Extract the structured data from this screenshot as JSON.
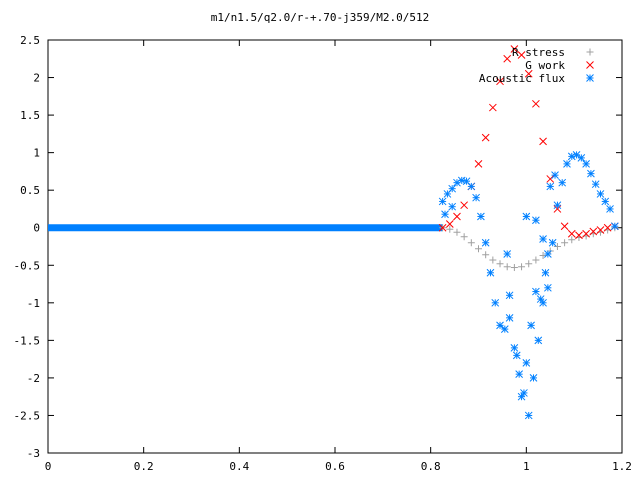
{
  "chart_data": {
    "type": "scatter",
    "title": "m1/n1.5/q2.0/r-+.70-j359/M2.0/512",
    "xlabel": "",
    "ylabel": "",
    "xlim": [
      0,
      1.2
    ],
    "ylim": [
      -3,
      2.5
    ],
    "xticks": [
      "0",
      "0.2",
      "0.4",
      "0.6",
      "0.8",
      "1",
      "1.2"
    ],
    "yticks": [
      "2.5",
      "2",
      "1.5",
      "1",
      "0.5",
      "0",
      "-0.5",
      "-1",
      "-1.5",
      "-2",
      "-2.5",
      "-3"
    ],
    "grid": false,
    "legend_position": "top-right",
    "series": [
      {
        "name": "R stress",
        "marker": "plus",
        "color": "#a0a0a0",
        "points": [
          [
            0.825,
            0
          ],
          [
            0.84,
            -0.02
          ],
          [
            0.855,
            -0.06
          ],
          [
            0.87,
            -0.12
          ],
          [
            0.885,
            -0.2
          ],
          [
            0.9,
            -0.28
          ],
          [
            0.915,
            -0.36
          ],
          [
            0.93,
            -0.43
          ],
          [
            0.945,
            -0.48
          ],
          [
            0.96,
            -0.52
          ],
          [
            0.975,
            -0.53
          ],
          [
            0.99,
            -0.52
          ],
          [
            1.005,
            -0.48
          ],
          [
            1.02,
            -0.43
          ],
          [
            1.035,
            -0.37
          ],
          [
            1.05,
            -0.31
          ],
          [
            1.065,
            -0.25
          ],
          [
            1.08,
            -0.2
          ],
          [
            1.095,
            -0.16
          ],
          [
            1.11,
            -0.13
          ],
          [
            1.125,
            -0.11
          ],
          [
            1.14,
            -0.08
          ],
          [
            1.155,
            -0.06
          ],
          [
            1.17,
            -0.03
          ],
          [
            1.185,
            0
          ]
        ]
      },
      {
        "name": "G work",
        "marker": "cross",
        "color": "#ff0000",
        "points": [
          [
            0.825,
            0
          ],
          [
            0.84,
            0.05
          ],
          [
            0.855,
            0.15
          ],
          [
            0.87,
            0.3
          ],
          [
            0.885,
            0.55
          ],
          [
            0.9,
            0.85
          ],
          [
            0.915,
            1.2
          ],
          [
            0.93,
            1.6
          ],
          [
            0.945,
            1.95
          ],
          [
            0.96,
            2.25
          ],
          [
            0.975,
            2.38
          ],
          [
            0.99,
            2.3
          ],
          [
            1.005,
            2.05
          ],
          [
            1.02,
            1.65
          ],
          [
            1.035,
            1.15
          ],
          [
            1.05,
            0.65
          ],
          [
            1.065,
            0.25
          ],
          [
            1.08,
            0.02
          ],
          [
            1.095,
            -0.08
          ],
          [
            1.11,
            -0.1
          ],
          [
            1.125,
            -0.08
          ],
          [
            1.14,
            -0.05
          ],
          [
            1.155,
            -0.03
          ],
          [
            1.17,
            0
          ],
          [
            1.185,
            0.02
          ]
        ]
      },
      {
        "name": "Acoustic flux",
        "marker": "star",
        "color": "#0080ff",
        "points": [
          [
            0.825,
            0.35
          ],
          [
            0.835,
            0.45
          ],
          [
            0.845,
            0.52
          ],
          [
            0.855,
            0.6
          ],
          [
            0.865,
            0.63
          ],
          [
            0.875,
            0.62
          ],
          [
            0.885,
            0.55
          ],
          [
            0.895,
            0.4
          ],
          [
            0.905,
            0.15
          ],
          [
            0.915,
            -0.2
          ],
          [
            0.925,
            -0.6
          ],
          [
            0.935,
            -1.0
          ],
          [
            0.945,
            -1.3
          ],
          [
            0.955,
            -1.35
          ],
          [
            0.965,
            -1.2
          ],
          [
            0.975,
            -1.6
          ],
          [
            0.985,
            -1.95
          ],
          [
            0.995,
            -2.2
          ],
          [
            1.005,
            -2.5
          ],
          [
            1.015,
            -2.0
          ],
          [
            1.025,
            -1.5
          ],
          [
            1.035,
            -1.0
          ],
          [
            1.045,
            -0.8
          ],
          [
            1.055,
            -0.2
          ],
          [
            1.065,
            0.3
          ],
          [
            1.075,
            0.6
          ],
          [
            1.085,
            0.85
          ],
          [
            1.095,
            0.95
          ],
          [
            1.105,
            0.97
          ],
          [
            1.115,
            0.93
          ],
          [
            1.125,
            0.85
          ],
          [
            1.135,
            0.72
          ],
          [
            1.145,
            0.58
          ],
          [
            1.155,
            0.45
          ],
          [
            1.165,
            0.35
          ],
          [
            1.175,
            0.25
          ],
          [
            1.185,
            0.02
          ],
          [
            0.83,
            0.18
          ],
          [
            0.845,
            0.28
          ],
          [
            0.96,
            -0.35
          ],
          [
            0.965,
            -0.9
          ],
          [
            0.98,
            -1.7
          ],
          [
            0.99,
            -2.25
          ],
          [
            1.0,
            -1.8
          ],
          [
            1.01,
            -1.3
          ],
          [
            1.02,
            -0.85
          ],
          [
            1.03,
            -0.95
          ],
          [
            1.04,
            -0.6
          ],
          [
            1.045,
            -0.35
          ],
          [
            1.035,
            -0.15
          ],
          [
            1.02,
            0.1
          ],
          [
            1.0,
            0.15
          ],
          [
            1.05,
            0.55
          ],
          [
            1.06,
            0.7
          ]
        ]
      }
    ]
  }
}
